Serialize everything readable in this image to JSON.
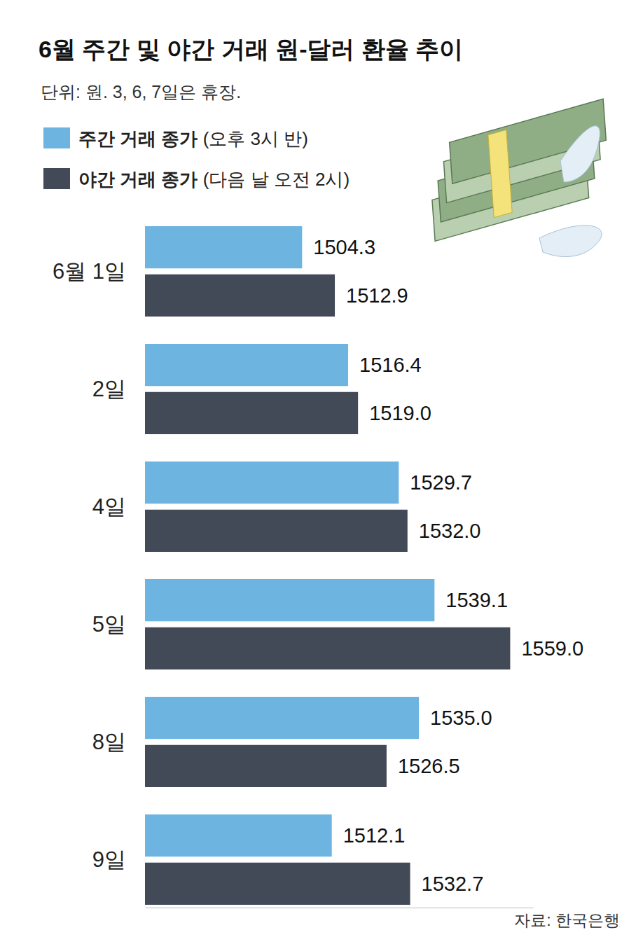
{
  "chart_data": {
    "type": "bar",
    "orientation": "horizontal",
    "title": "6월 주간 및 야간 거래 원-달러 환율 추이",
    "subtitle": "단위: 원. 3, 6, 7일은 휴장.",
    "categories": [
      "6월 1일",
      "2일",
      "4일",
      "5일",
      "8일",
      "9일"
    ],
    "series": [
      {
        "name": "주간 거래 종가 (오후 3시 반)",
        "color": "#6db4e1",
        "values": [
          1504.3,
          1516.4,
          1529.7,
          1539.1,
          1535.0,
          1512.1
        ],
        "value_labels": [
          "1504.3",
          "1516.4",
          "1529.7",
          "1539.1",
          "1535.0",
          "1512.1"
        ]
      },
      {
        "name": "야간 거래 종가 (다음 날 오전 2시)",
        "color": "#434a57",
        "values": [
          1512.9,
          1519.0,
          1532.0,
          1559.0,
          1526.5,
          1532.7
        ],
        "value_labels": [
          "1512.9",
          "1519.0",
          "1532.0",
          "1559.0",
          "1526.5",
          "1532.7"
        ]
      }
    ],
    "xlim": [
      1463,
      1565
    ],
    "xticks": [],
    "tick_labels": false,
    "data_labels": true,
    "legend": "top-left",
    "grid": false,
    "annotations": [
      "자료: 한국은행"
    ]
  }
}
